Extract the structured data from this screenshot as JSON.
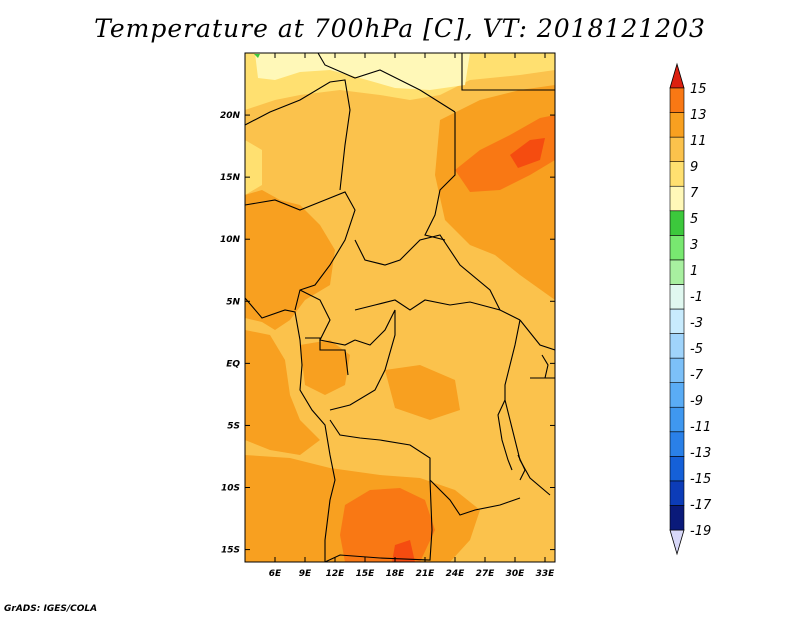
{
  "title": "Temperature at 700hPa [C], VT: 2018121203",
  "credit": "GrADS: IGES/COLA",
  "map": {
    "lon_range": [
      3,
      34
    ],
    "lat_range": [
      -16,
      25
    ],
    "lon_ticks": [
      {
        "value": 6,
        "label": "6E"
      },
      {
        "value": 9,
        "label": "9E"
      },
      {
        "value": 12,
        "label": "12E"
      },
      {
        "value": 15,
        "label": "15E"
      },
      {
        "value": 18,
        "label": "18E"
      },
      {
        "value": 21,
        "label": "21E"
      },
      {
        "value": 24,
        "label": "24E"
      },
      {
        "value": 27,
        "label": "27E"
      },
      {
        "value": 30,
        "label": "30E"
      },
      {
        "value": 33,
        "label": "33E"
      }
    ],
    "lat_ticks": [
      {
        "value": 20,
        "label": "20N"
      },
      {
        "value": 15,
        "label": "15N"
      },
      {
        "value": 10,
        "label": "10N"
      },
      {
        "value": 5,
        "label": "5N"
      },
      {
        "value": 0,
        "label": "EQ"
      },
      {
        "value": -5,
        "label": "5S"
      },
      {
        "value": -10,
        "label": "10S"
      },
      {
        "value": -15,
        "label": "15S"
      }
    ]
  },
  "colorbar": {
    "colors": [
      "#0a1a7a",
      "#0c3cb8",
      "#1560d8",
      "#2a80e8",
      "#3f98f0",
      "#5aacf5",
      "#7cc0f8",
      "#a0d4fb",
      "#c8ebfd",
      "#e0f8f0",
      "#a8f0a0",
      "#78e870",
      "#3cc83c",
      "#fff8b8",
      "#ffe070",
      "#fbc24c",
      "#f8a020",
      "#f97814",
      "#f54c10",
      "#dc2010"
    ],
    "low_arrow_color": "#d8d8f8",
    "high_arrow_color": "#dc2010",
    "labels": [
      "15",
      "13",
      "11",
      "9",
      "7",
      "5",
      "3",
      "1",
      "-1",
      "-3",
      "-5",
      "-7",
      "-9",
      "-11",
      "-13",
      "-15",
      "-17",
      "-19"
    ]
  }
}
